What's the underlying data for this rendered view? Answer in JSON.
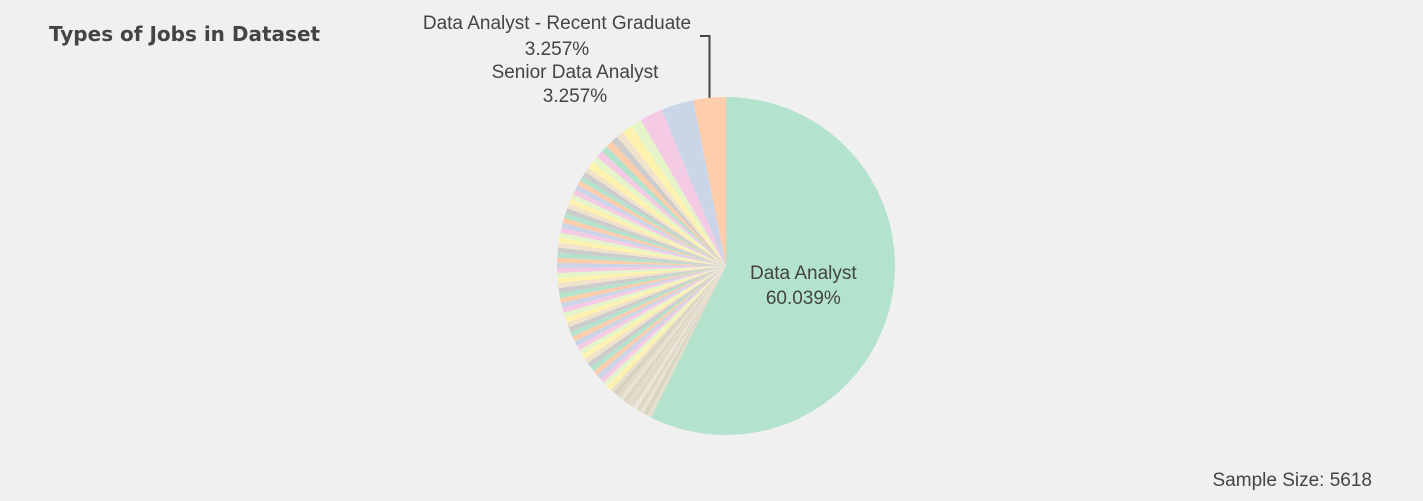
{
  "title": "Types of Jobs in Dataset",
  "footer": {
    "sample_size_label": "Sample Size: 5618"
  },
  "chart_data": {
    "type": "pie",
    "sample_size": 5618,
    "slices": [
      {
        "label": "Data Analyst",
        "percent": 60.039,
        "percent_label": "60.039%",
        "color": "#b3e2cd",
        "shown": true
      },
      {
        "label": "",
        "percent": 0.4,
        "color": "#e6ddcc"
      },
      {
        "label": "",
        "percent": 0.4,
        "color": "#d9d4c2"
      },
      {
        "label": "",
        "percent": 0.4,
        "color": "#e8e2d4"
      },
      {
        "label": "",
        "percent": 0.4,
        "color": "#ded7c6"
      },
      {
        "label": "",
        "percent": 0.4,
        "color": "#ece6d8"
      },
      {
        "label": "",
        "percent": 0.4,
        "color": "#e0d9c8"
      },
      {
        "label": "",
        "percent": 0.4,
        "color": "#e4dccb"
      },
      {
        "label": "",
        "percent": 0.4,
        "color": "#dcd5c4"
      },
      {
        "label": "",
        "percent": 0.4,
        "color": "#eae3d3"
      },
      {
        "label": "",
        "percent": 0.4,
        "color": "#e2dac9"
      },
      {
        "label": "",
        "percent": 0.4,
        "color": "#d7d0bf"
      },
      {
        "label": "",
        "percent": 0.4,
        "color": "#e7dfce"
      },
      {
        "label": "",
        "percent": 0.5,
        "color": "#fff2ae"
      },
      {
        "label": "",
        "percent": 0.5,
        "color": "#e6f5c9"
      },
      {
        "label": "",
        "percent": 0.5,
        "color": "#f4cae4"
      },
      {
        "label": "",
        "percent": 0.5,
        "color": "#cbd5e8"
      },
      {
        "label": "",
        "percent": 0.5,
        "color": "#fdcdac"
      },
      {
        "label": "",
        "percent": 0.5,
        "color": "#b3e2cd"
      },
      {
        "label": "",
        "percent": 0.5,
        "color": "#cccccc"
      },
      {
        "label": "",
        "percent": 0.5,
        "color": "#f1e2cc"
      },
      {
        "label": "",
        "percent": 0.5,
        "color": "#fff2ae"
      },
      {
        "label": "",
        "percent": 0.5,
        "color": "#e6f5c9"
      },
      {
        "label": "",
        "percent": 0.5,
        "color": "#f4cae4"
      },
      {
        "label": "",
        "percent": 0.5,
        "color": "#cbd5e8"
      },
      {
        "label": "",
        "percent": 0.5,
        "color": "#fdcdac"
      },
      {
        "label": "",
        "percent": 0.5,
        "color": "#b3e2cd"
      },
      {
        "label": "",
        "percent": 0.5,
        "color": "#cccccc"
      },
      {
        "label": "",
        "percent": 0.5,
        "color": "#f1e2cc"
      },
      {
        "label": "",
        "percent": 0.5,
        "color": "#fff2ae"
      },
      {
        "label": "",
        "percent": 0.5,
        "color": "#e6f5c9"
      },
      {
        "label": "",
        "percent": 0.5,
        "color": "#f4cae4"
      },
      {
        "label": "",
        "percent": 0.5,
        "color": "#cbd5e8"
      },
      {
        "label": "",
        "percent": 0.5,
        "color": "#fdcdac"
      },
      {
        "label": "",
        "percent": 0.5,
        "color": "#b3e2cd"
      },
      {
        "label": "",
        "percent": 0.5,
        "color": "#cccccc"
      },
      {
        "label": "",
        "percent": 0.5,
        "color": "#f1e2cc"
      },
      {
        "label": "",
        "percent": 0.5,
        "color": "#fff2ae"
      },
      {
        "label": "",
        "percent": 0.5,
        "color": "#e6f5c9"
      },
      {
        "label": "",
        "percent": 0.5,
        "color": "#f4cae4"
      },
      {
        "label": "",
        "percent": 0.5,
        "color": "#cbd5e8"
      },
      {
        "label": "",
        "percent": 0.5,
        "color": "#fdcdac"
      },
      {
        "label": "",
        "percent": 0.5,
        "color": "#b3e2cd"
      },
      {
        "label": "",
        "percent": 0.5,
        "color": "#cccccc"
      },
      {
        "label": "",
        "percent": 0.5,
        "color": "#f1e2cc"
      },
      {
        "label": "",
        "percent": 0.5,
        "color": "#fff2ae"
      },
      {
        "label": "",
        "percent": 0.5,
        "color": "#e6f5c9"
      },
      {
        "label": "",
        "percent": 0.5,
        "color": "#f4cae4"
      },
      {
        "label": "",
        "percent": 0.5,
        "color": "#cbd5e8"
      },
      {
        "label": "",
        "percent": 0.5,
        "color": "#fdcdac"
      },
      {
        "label": "",
        "percent": 0.5,
        "color": "#b3e2cd"
      },
      {
        "label": "",
        "percent": 0.5,
        "color": "#cccccc"
      },
      {
        "label": "",
        "percent": 0.5,
        "color": "#f1e2cc"
      },
      {
        "label": "",
        "percent": 0.5,
        "color": "#fff2ae"
      },
      {
        "label": "",
        "percent": 0.5,
        "color": "#e6f5c9"
      },
      {
        "label": "",
        "percent": 0.5,
        "color": "#f4cae4"
      },
      {
        "label": "",
        "percent": 0.5,
        "color": "#cbd5e8"
      },
      {
        "label": "",
        "percent": 0.5,
        "color": "#fdcdac"
      },
      {
        "label": "",
        "percent": 0.5,
        "color": "#b3e2cd"
      },
      {
        "label": "",
        "percent": 0.5,
        "color": "#cccccc"
      },
      {
        "label": "",
        "percent": 0.5,
        "color": "#f1e2cc"
      },
      {
        "label": "",
        "percent": 0.7,
        "color": "#fff2ae"
      },
      {
        "label": "",
        "percent": 0.7,
        "color": "#e6f5c9"
      },
      {
        "label": "",
        "percent": 0.7,
        "color": "#f4cae4"
      },
      {
        "label": "",
        "percent": 0.7,
        "color": "#b3e2cd"
      },
      {
        "label": "",
        "percent": 0.7,
        "color": "#fdcdac"
      },
      {
        "label": "",
        "percent": 0.7,
        "color": "#cccccc"
      },
      {
        "label": "",
        "percent": 0.7,
        "color": "#f1e2cc"
      },
      {
        "label": "",
        "percent": 1.05,
        "color": "#fff2ae"
      },
      {
        "label": "",
        "percent": 1.1,
        "color": "#e6f5c9"
      },
      {
        "label": "",
        "percent": 2.3,
        "color": "#f4cae4"
      },
      {
        "label": "Senior Data Analyst",
        "percent": 3.257,
        "percent_label": "3.257%",
        "color": "#cbd5e8",
        "shown": true
      },
      {
        "label": "Data Analyst - Recent Graduate",
        "percent": 3.257,
        "percent_label": "3.257%",
        "color": "#fdcdac",
        "shown": true
      }
    ]
  }
}
